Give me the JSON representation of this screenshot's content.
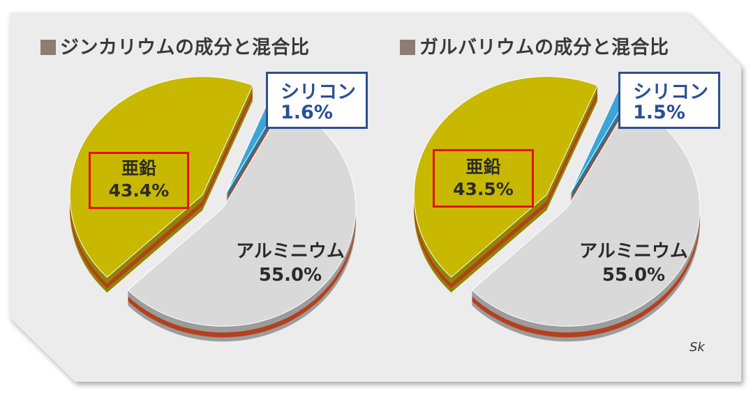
{
  "chart_data": [
    {
      "type": "pie",
      "title": "ジンカリウムの成分と混合比",
      "slices": [
        {
          "label": "亜鉛",
          "value": 43.4,
          "display": "43.4%",
          "color": "#c9b800"
        },
        {
          "label": "シリコン",
          "value": 1.6,
          "display": "1.6%",
          "color": "#3aa6d8"
        },
        {
          "label": "アルミニウム",
          "value": 55.0,
          "display": "55.0%",
          "color": "#d9d9d9"
        }
      ],
      "highlight": "亜鉛"
    },
    {
      "type": "pie",
      "title": "ガルバリウムの成分と混合比",
      "slices": [
        {
          "label": "亜鉛",
          "value": 43.5,
          "display": "43.5%",
          "color": "#c9b800"
        },
        {
          "label": "シリコン",
          "value": 1.5,
          "display": "1.5%",
          "color": "#3aa6d8"
        },
        {
          "label": "アルミニウム",
          "value": 55.0,
          "display": "55.0%",
          "color": "#d9d9d9"
        }
      ],
      "highlight": "亜鉛"
    }
  ],
  "signature": "Sk",
  "colors": {
    "panel": "#ececec",
    "stripe": "#b5401e",
    "highlight_border": "#e3101b",
    "callout_border": "#2c4f8f"
  }
}
